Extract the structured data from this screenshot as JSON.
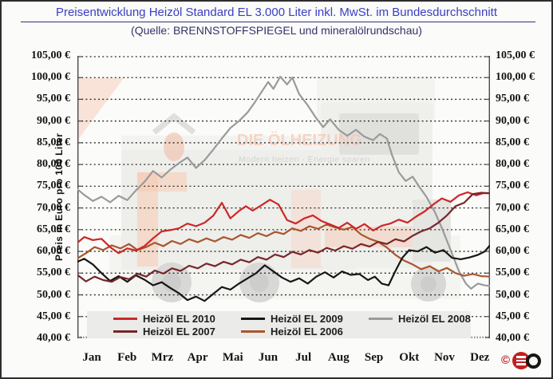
{
  "chart_data": {
    "type": "line",
    "title": "Preisentwicklung Heizöl Standard EL 3.000 Liter inkl. MwSt. im Bundesdurchschnitt",
    "subtitle": "(Quelle: BRENNSTOFFSPIEGEL und mineralölrundschau)",
    "ylabel": "Preis in Euro pro 100 Liter",
    "y_min": 40,
    "y_max": 105,
    "y_step": 5,
    "y_tick_format": "##,00 €",
    "grid": "horizontal-dotted",
    "legend_position": "bottom-inside",
    "categories": [
      "Jan",
      "Feb",
      "Mrz",
      "Apr",
      "Mai",
      "Jun",
      "Jul",
      "Aug",
      "Sep",
      "Okt",
      "Nov",
      "Dez"
    ],
    "x_unit": "month (0-12, weekly resolution)",
    "draw_order": [
      "Heizöl EL 2008",
      "Heizöl EL 2006",
      "Heizöl EL 2009",
      "Heizöl EL 2010",
      "Heizöl EL 2007"
    ],
    "series": [
      {
        "name": "Heizöl EL 2010",
        "color": "#cc2727",
        "points": [
          [
            0,
            62.0
          ],
          [
            0.2,
            63.3
          ],
          [
            0.45,
            62.6
          ],
          [
            0.7,
            62.9
          ],
          [
            0.95,
            61.0
          ],
          [
            1.2,
            59.6
          ],
          [
            1.45,
            60.7
          ],
          [
            1.7,
            60.2
          ],
          [
            1.95,
            61.2
          ],
          [
            2.2,
            63.0
          ],
          [
            2.45,
            64.6
          ],
          [
            2.7,
            64.9
          ],
          [
            2.95,
            65.3
          ],
          [
            3.2,
            66.4
          ],
          [
            3.45,
            65.8
          ],
          [
            3.7,
            66.6
          ],
          [
            3.95,
            68.2
          ],
          [
            4.2,
            71.2
          ],
          [
            4.45,
            67.6
          ],
          [
            4.7,
            69.3
          ],
          [
            4.9,
            70.4
          ],
          [
            5.1,
            69.4
          ],
          [
            5.35,
            70.6
          ],
          [
            5.6,
            71.9
          ],
          [
            5.85,
            70.8
          ],
          [
            6.1,
            67.2
          ],
          [
            6.35,
            66.4
          ],
          [
            6.6,
            67.6
          ],
          [
            6.85,
            68.3
          ],
          [
            7.1,
            67.0
          ],
          [
            7.35,
            66.2
          ],
          [
            7.6,
            65.4
          ],
          [
            7.85,
            66.6
          ],
          [
            8.1,
            65.2
          ],
          [
            8.35,
            66.3
          ],
          [
            8.6,
            64.8
          ],
          [
            8.85,
            65.9
          ],
          [
            9.1,
            66.4
          ],
          [
            9.35,
            67.3
          ],
          [
            9.6,
            66.6
          ],
          [
            9.85,
            68.0
          ],
          [
            10.1,
            69.2
          ],
          [
            10.35,
            70.8
          ],
          [
            10.6,
            72.2
          ],
          [
            10.85,
            71.4
          ],
          [
            11.1,
            72.9
          ],
          [
            11.35,
            73.6
          ],
          [
            11.6,
            72.9
          ],
          [
            11.8,
            73.4
          ],
          [
            12,
            73.4
          ]
        ]
      },
      {
        "name": "Heizöl EL 2009",
        "color": "#161616",
        "points": [
          [
            0,
            57.6
          ],
          [
            0.2,
            58.3
          ],
          [
            0.45,
            57.0
          ],
          [
            0.7,
            55.0
          ],
          [
            0.95,
            53.2
          ],
          [
            1.2,
            54.3
          ],
          [
            1.45,
            53.0
          ],
          [
            1.7,
            54.5
          ],
          [
            1.95,
            53.5
          ],
          [
            2.2,
            52.2
          ],
          [
            2.45,
            52.9
          ],
          [
            2.7,
            51.6
          ],
          [
            2.95,
            50.4
          ],
          [
            3.2,
            48.8
          ],
          [
            3.45,
            49.6
          ],
          [
            3.7,
            48.6
          ],
          [
            3.95,
            50.2
          ],
          [
            4.2,
            51.8
          ],
          [
            4.45,
            51.2
          ],
          [
            4.7,
            52.6
          ],
          [
            4.95,
            53.8
          ],
          [
            5.2,
            55.0
          ],
          [
            5.45,
            56.8
          ],
          [
            5.7,
            55.4
          ],
          [
            5.95,
            54.0
          ],
          [
            6.2,
            53.0
          ],
          [
            6.45,
            53.8
          ],
          [
            6.7,
            52.6
          ],
          [
            6.95,
            54.2
          ],
          [
            7.2,
            55.2
          ],
          [
            7.45,
            54.0
          ],
          [
            7.7,
            55.4
          ],
          [
            7.95,
            54.6
          ],
          [
            8.2,
            54.8
          ],
          [
            8.45,
            53.4
          ],
          [
            8.65,
            54.2
          ],
          [
            8.85,
            52.6
          ],
          [
            9.05,
            52.2
          ],
          [
            9.25,
            55.5
          ],
          [
            9.45,
            58.5
          ],
          [
            9.65,
            60.3
          ],
          [
            9.9,
            60.0
          ],
          [
            10.15,
            61.0
          ],
          [
            10.4,
            59.7
          ],
          [
            10.65,
            60.3
          ],
          [
            10.9,
            58.5
          ],
          [
            11.15,
            58.2
          ],
          [
            11.4,
            58.6
          ],
          [
            11.65,
            59.2
          ],
          [
            11.85,
            60.0
          ],
          [
            12,
            61.4
          ]
        ]
      },
      {
        "name": "Heizöl EL 2008",
        "color": "#9a9a9a",
        "points": [
          [
            0,
            74.3
          ],
          [
            0.2,
            73.0
          ],
          [
            0.45,
            71.6
          ],
          [
            0.7,
            72.6
          ],
          [
            0.95,
            71.3
          ],
          [
            1.2,
            72.8
          ],
          [
            1.45,
            71.8
          ],
          [
            1.7,
            74.0
          ],
          [
            1.95,
            76.0
          ],
          [
            2.2,
            78.5
          ],
          [
            2.45,
            77.0
          ],
          [
            2.7,
            78.8
          ],
          [
            2.95,
            80.3
          ],
          [
            3.2,
            81.6
          ],
          [
            3.45,
            79.2
          ],
          [
            3.7,
            81.0
          ],
          [
            3.95,
            83.4
          ],
          [
            4.2,
            86.0
          ],
          [
            4.45,
            88.4
          ],
          [
            4.7,
            90.0
          ],
          [
            4.95,
            92.0
          ],
          [
            5.15,
            94.2
          ],
          [
            5.35,
            96.6
          ],
          [
            5.55,
            99.0
          ],
          [
            5.7,
            97.4
          ],
          [
            5.9,
            100.2
          ],
          [
            6.1,
            98.4
          ],
          [
            6.25,
            100.0
          ],
          [
            6.45,
            96.2
          ],
          [
            6.7,
            93.6
          ],
          [
            6.95,
            90.6
          ],
          [
            7.15,
            88.6
          ],
          [
            7.35,
            90.4
          ],
          [
            7.6,
            88.0
          ],
          [
            7.85,
            86.6
          ],
          [
            8.1,
            88.0
          ],
          [
            8.35,
            86.4
          ],
          [
            8.6,
            85.6
          ],
          [
            8.8,
            87.0
          ],
          [
            9.0,
            86.0
          ],
          [
            9.15,
            82.2
          ],
          [
            9.35,
            78.2
          ],
          [
            9.55,
            76.2
          ],
          [
            9.75,
            77.2
          ],
          [
            9.95,
            74.8
          ],
          [
            10.15,
            72.6
          ],
          [
            10.4,
            69.0
          ],
          [
            10.6,
            65.4
          ],
          [
            10.85,
            60.4
          ],
          [
            11.1,
            55.4
          ],
          [
            11.3,
            52.6
          ],
          [
            11.45,
            51.4
          ],
          [
            11.65,
            52.6
          ],
          [
            11.85,
            52.2
          ],
          [
            12,
            52.0
          ]
        ]
      },
      {
        "name": "Heizöl EL 2007",
        "color": "#76262b",
        "points": [
          [
            0,
            54.6
          ],
          [
            0.25,
            53.1
          ],
          [
            0.5,
            54.2
          ],
          [
            0.75,
            53.4
          ],
          [
            1.0,
            53.0
          ],
          [
            1.25,
            54.1
          ],
          [
            1.5,
            53.6
          ],
          [
            1.75,
            54.9
          ],
          [
            2.0,
            54.2
          ],
          [
            2.25,
            55.6
          ],
          [
            2.5,
            54.9
          ],
          [
            2.75,
            56.1
          ],
          [
            3.0,
            55.5
          ],
          [
            3.25,
            56.7
          ],
          [
            3.5,
            56.1
          ],
          [
            3.75,
            57.2
          ],
          [
            4.0,
            56.6
          ],
          [
            4.25,
            57.6
          ],
          [
            4.5,
            57.0
          ],
          [
            4.75,
            58.1
          ],
          [
            5.0,
            57.5
          ],
          [
            5.25,
            58.7
          ],
          [
            5.5,
            58.1
          ],
          [
            5.75,
            59.3
          ],
          [
            6.0,
            58.7
          ],
          [
            6.25,
            59.9
          ],
          [
            6.5,
            59.3
          ],
          [
            6.75,
            60.3
          ],
          [
            7.0,
            59.7
          ],
          [
            7.25,
            60.8
          ],
          [
            7.5,
            60.2
          ],
          [
            7.75,
            61.2
          ],
          [
            8.0,
            60.6
          ],
          [
            8.25,
            61.7
          ],
          [
            8.5,
            61.1
          ],
          [
            8.75,
            62.2
          ],
          [
            9.0,
            61.7
          ],
          [
            9.25,
            62.8
          ],
          [
            9.5,
            62.3
          ],
          [
            9.75,
            63.6
          ],
          [
            10.0,
            64.6
          ],
          [
            10.25,
            65.3
          ],
          [
            10.5,
            66.6
          ],
          [
            10.75,
            68.3
          ],
          [
            11.0,
            70.4
          ],
          [
            11.25,
            71.2
          ],
          [
            11.5,
            73.2
          ],
          [
            11.75,
            73.5
          ],
          [
            12,
            73.4
          ]
        ]
      },
      {
        "name": "Heizöl EL 2006",
        "color": "#a8562f",
        "points": [
          [
            0,
            58.4
          ],
          [
            0.25,
            59.6
          ],
          [
            0.5,
            61.0
          ],
          [
            0.75,
            60.3
          ],
          [
            1.0,
            61.4
          ],
          [
            1.25,
            60.7
          ],
          [
            1.5,
            61.7
          ],
          [
            1.75,
            60.3
          ],
          [
            2.0,
            61.0
          ],
          [
            2.25,
            62.0
          ],
          [
            2.5,
            61.2
          ],
          [
            2.75,
            62.4
          ],
          [
            3.0,
            61.7
          ],
          [
            3.25,
            62.8
          ],
          [
            3.5,
            62.1
          ],
          [
            3.75,
            63.0
          ],
          [
            4.0,
            62.3
          ],
          [
            4.25,
            63.3
          ],
          [
            4.5,
            62.7
          ],
          [
            4.75,
            63.8
          ],
          [
            5.0,
            63.1
          ],
          [
            5.25,
            64.2
          ],
          [
            5.5,
            63.5
          ],
          [
            5.75,
            64.5
          ],
          [
            6.0,
            64.0
          ],
          [
            6.25,
            65.3
          ],
          [
            6.5,
            64.7
          ],
          [
            6.75,
            65.8
          ],
          [
            7.0,
            65.2
          ],
          [
            7.25,
            66.2
          ],
          [
            7.5,
            65.5
          ],
          [
            7.75,
            65.0
          ],
          [
            8.0,
            65.6
          ],
          [
            8.25,
            63.9
          ],
          [
            8.5,
            62.9
          ],
          [
            8.75,
            62.2
          ],
          [
            9.0,
            60.9
          ],
          [
            9.25,
            59.2
          ],
          [
            9.5,
            57.9
          ],
          [
            9.75,
            57.0
          ],
          [
            10.0,
            55.9
          ],
          [
            10.25,
            56.6
          ],
          [
            10.5,
            55.4
          ],
          [
            10.75,
            56.2
          ],
          [
            11.0,
            55.0
          ],
          [
            11.25,
            54.4
          ],
          [
            11.5,
            54.8
          ],
          [
            11.75,
            54.3
          ],
          [
            12,
            54.2
          ]
        ]
      }
    ]
  },
  "watermark": {
    "brand": "DIE ÖLHEIZUNG",
    "tagline": "Modern heizen - Energie sparen"
  },
  "footer_logo": {
    "copyright_symbol": "©"
  }
}
